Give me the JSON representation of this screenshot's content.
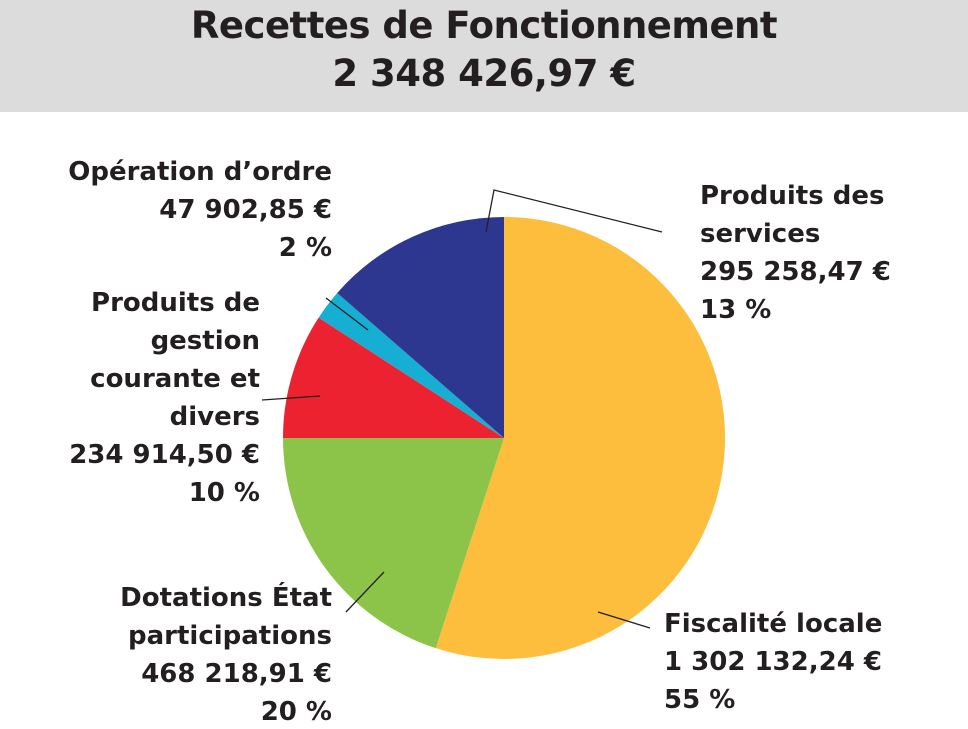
{
  "chart_data": {
    "type": "pie",
    "title": "Recettes de Fonctionnement",
    "subtitle": "2 348 426,97 €",
    "slices": [
      {
        "key": "fiscalite",
        "label_lines": [
          "Fiscalité locale"
        ],
        "amount": "1 302 132,24 €",
        "percent": "55 %",
        "value": 1302132.24,
        "color": "#fdbe3d"
      },
      {
        "key": "dotations",
        "label_lines": [
          "Dotations État",
          "participations"
        ],
        "amount": "468 218,91 €",
        "percent": "20 %",
        "value": 468218.91,
        "color": "#8cc44a"
      },
      {
        "key": "gestion",
        "label_lines": [
          "Produits de",
          "gestion",
          "courante et",
          "divers"
        ],
        "amount": "234 914,50 €",
        "percent": "10 %",
        "value": 234914.5,
        "color": "#ec2230"
      },
      {
        "key": "ordre",
        "label_lines": [
          "Opération d’ordre"
        ],
        "amount": "47 902,85 €",
        "percent": "2 %",
        "value": 47902.85,
        "color": "#17aed3"
      },
      {
        "key": "services",
        "label_lines": [
          "Produits des",
          "services"
        ],
        "amount": "295 258,47 €",
        "percent": "13 %",
        "value": 295258.47,
        "color": "#2e3790"
      }
    ]
  }
}
